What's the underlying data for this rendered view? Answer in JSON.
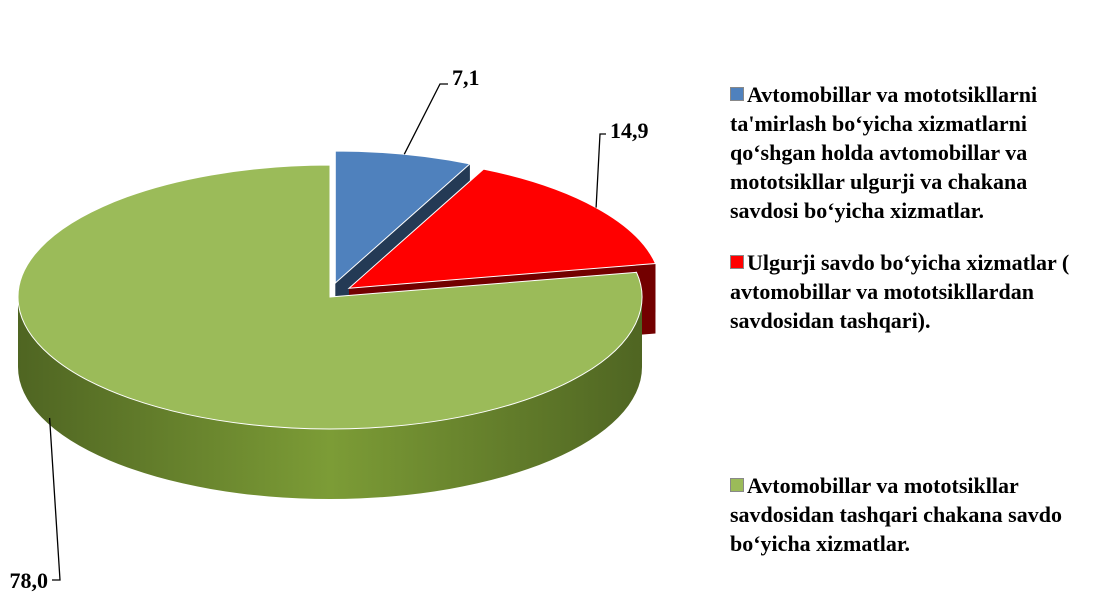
{
  "chart_data": {
    "type": "pie",
    "categories": [
      "Avtomobillar va mototsikllarni ta'mirlash bo‘yicha xizmatlarni qo‘shgan holda avtomobillar va mototsikllar ulgurji va chakana savdosi bo‘yicha xizmatlar.",
      "Ulgurji savdo bo‘yicha xizmatlar ( avtomobillar va mototsikllardan savdosidan tashqari).",
      "Avtomobillar va mototsikllar savdosidan tashqari chakana savdo bo‘yicha xizmatlar."
    ],
    "values": [
      7.1,
      14.9,
      78.0
    ],
    "value_labels": [
      "7,1",
      "14,9",
      "78,0"
    ],
    "colors": [
      "#4f81bd",
      "#ff0000",
      "#9bbb59"
    ],
    "legend": "right"
  }
}
